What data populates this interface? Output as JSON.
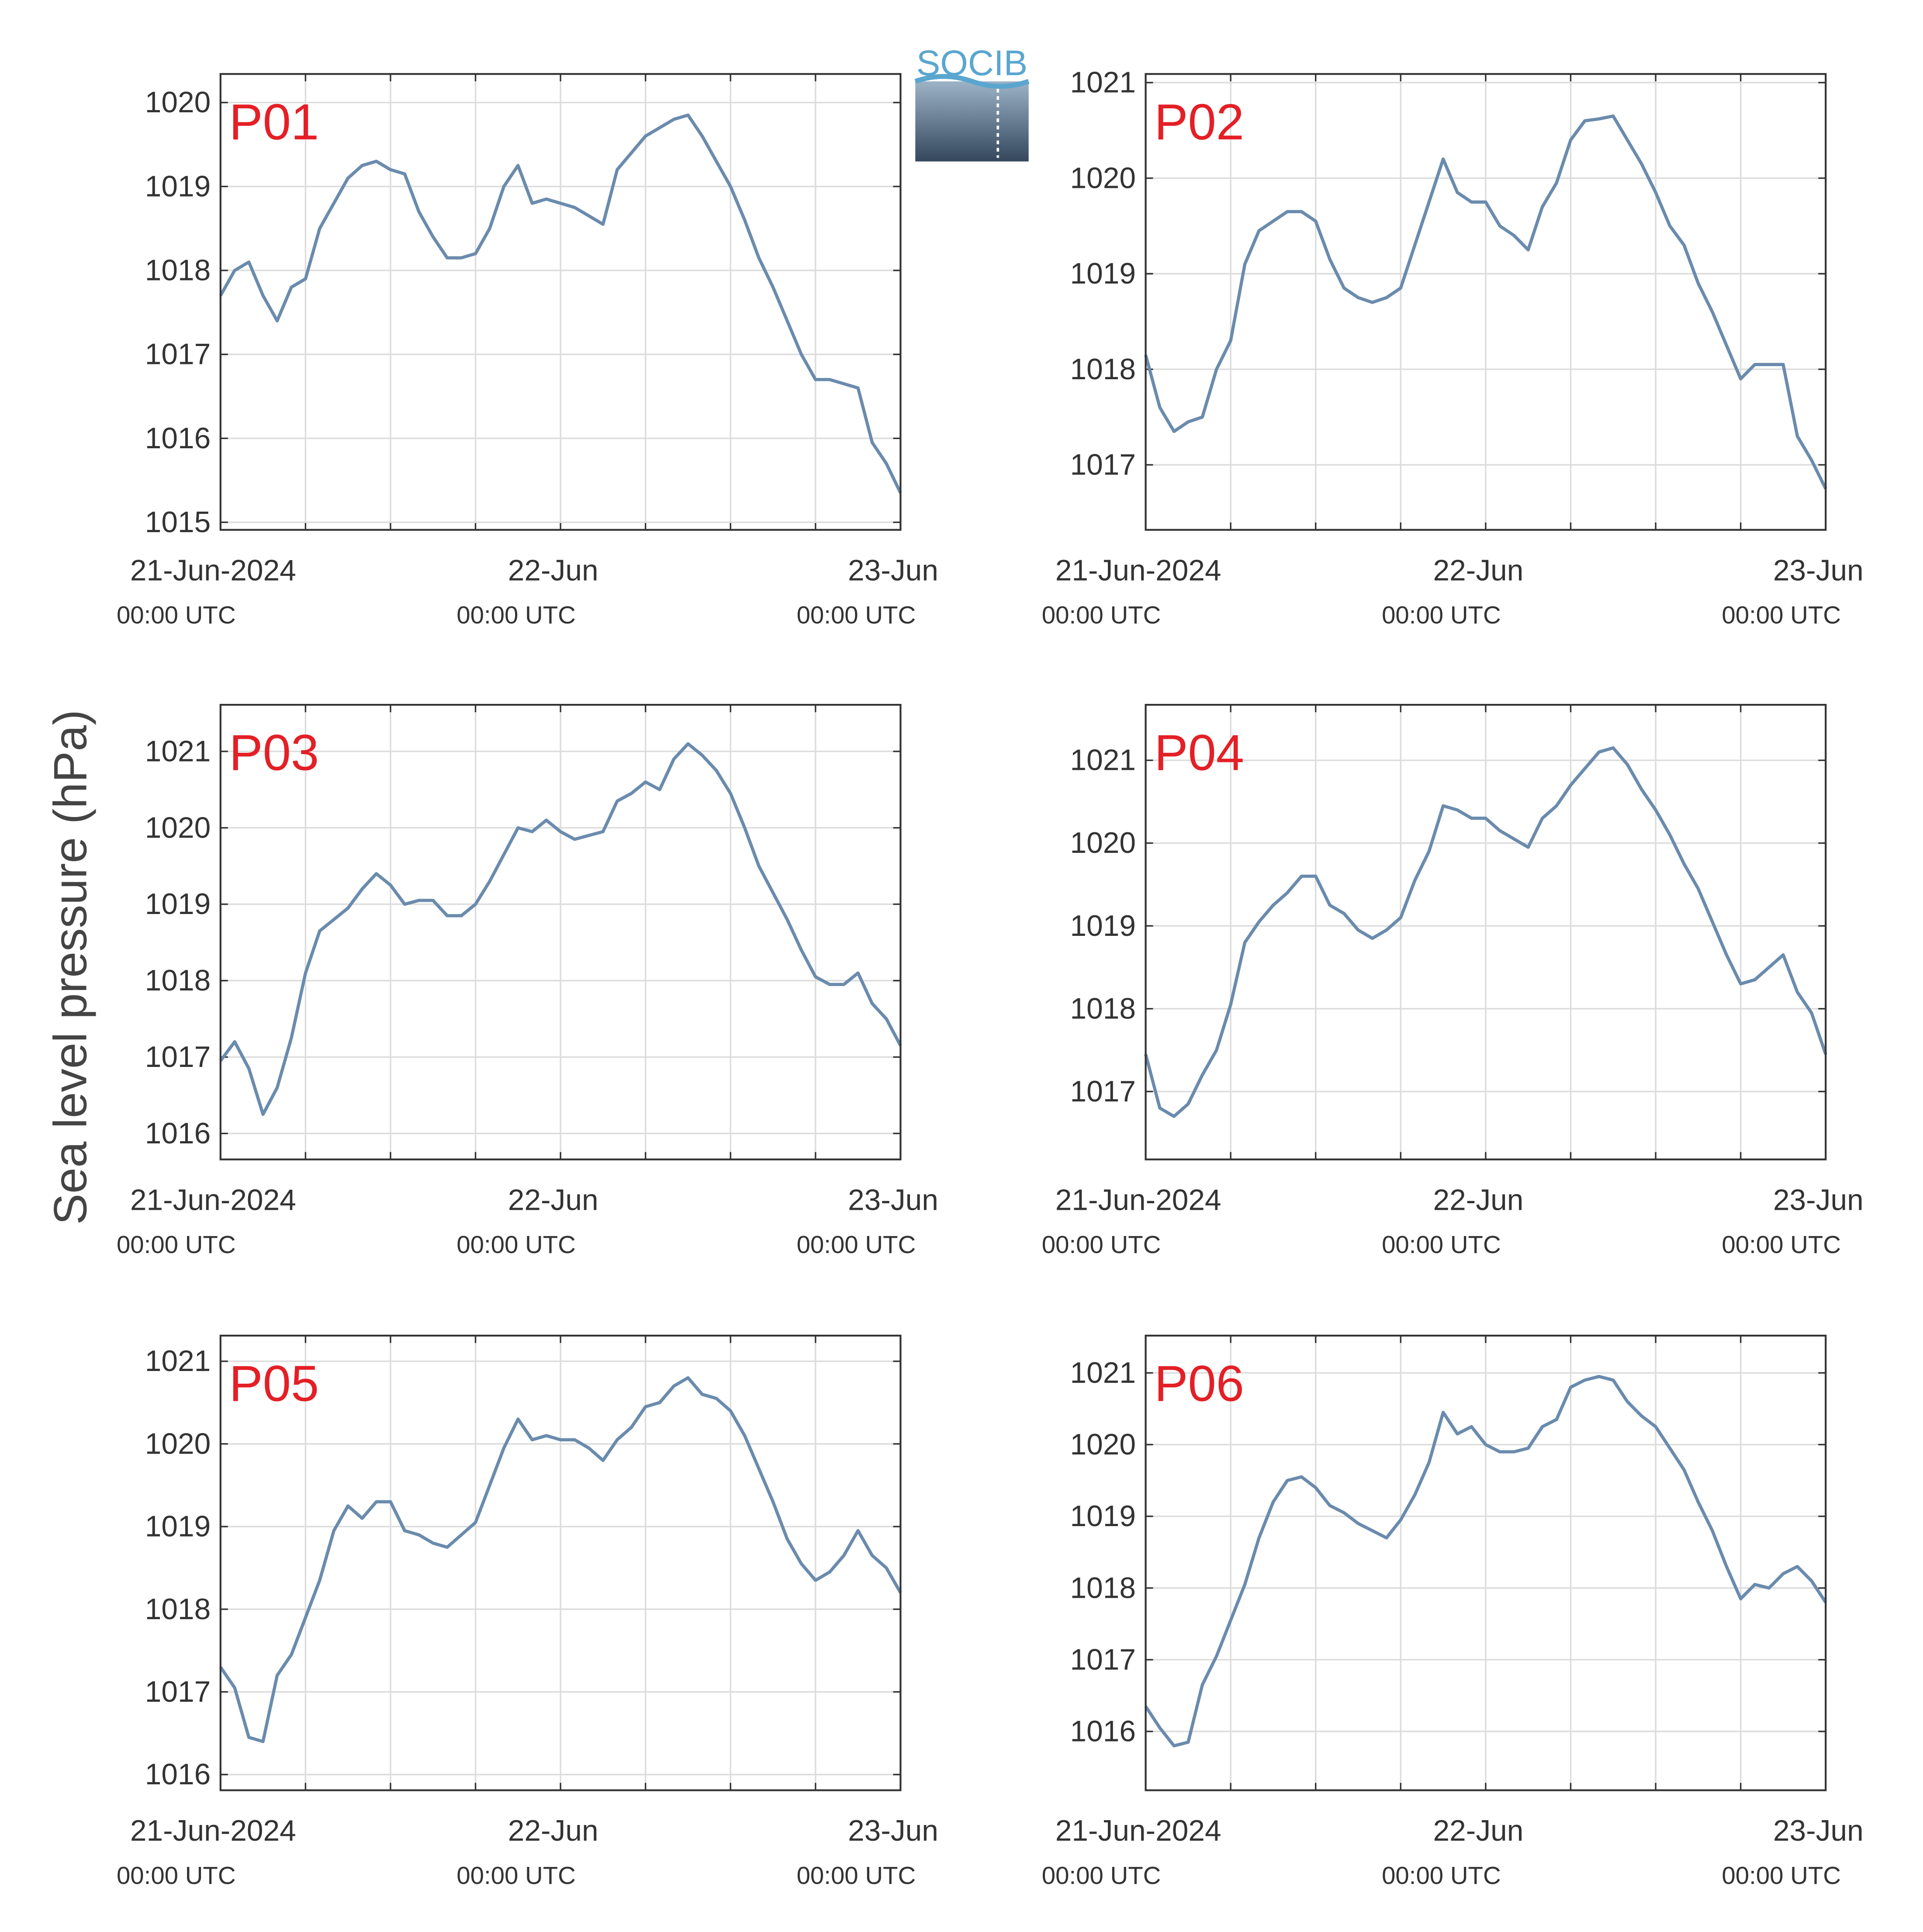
{
  "ylabel": "Sea level pressure (hPa)",
  "logo": "SOCIB",
  "chart_data": [
    {
      "type": "line",
      "title": "P01",
      "color": "#6a8bad",
      "grid": true,
      "xlim": [
        0,
        48
      ],
      "ylim": [
        1014.91,
        1020.34
      ],
      "yticks": [
        1015,
        1016,
        1017,
        1018,
        1019,
        1020
      ],
      "xticks": [
        {
          "value": 0,
          "label": "21-Jun-2024",
          "sublabel": "00:00 UTC"
        },
        {
          "value": 24,
          "label": "22-Jun",
          "sublabel": "00:00 UTC"
        },
        {
          "value": 48,
          "label": "23-Jun",
          "sublabel": "00:00 UTC"
        }
      ],
      "xminor": [
        6,
        12,
        18,
        30,
        36,
        42
      ],
      "x": [
        0,
        1,
        2,
        3,
        4,
        5,
        6,
        7,
        8,
        9,
        10,
        11,
        12,
        13,
        14,
        15,
        16,
        17,
        18,
        19,
        20,
        21,
        22,
        23,
        24,
        25,
        26,
        27,
        28,
        29,
        30,
        31,
        32,
        33,
        34,
        35,
        36,
        37,
        38,
        39,
        40,
        41,
        42,
        43,
        44,
        45,
        46,
        47,
        48
      ],
      "values": [
        1017.7,
        1018.0,
        1018.1,
        1017.7,
        1017.4,
        1017.8,
        1017.9,
        1018.5,
        1018.8,
        1019.1,
        1019.25,
        1019.3,
        1019.2,
        1019.15,
        1018.7,
        1018.4,
        1018.15,
        1018.15,
        1018.2,
        1018.5,
        1019.0,
        1019.25,
        1018.8,
        1018.85,
        1018.8,
        1018.75,
        1018.65,
        1018.55,
        1019.2,
        1019.4,
        1019.6,
        1019.7,
        1019.8,
        1019.85,
        1019.6,
        1019.3,
        1019.0,
        1018.6,
        1018.15,
        1017.8,
        1017.4,
        1017.0,
        1016.7,
        1016.7,
        1016.65,
        1016.6,
        1015.95,
        1015.7,
        1015.35
      ]
    },
    {
      "type": "line",
      "title": "P02",
      "color": "#6a8bad",
      "grid": true,
      "xlim": [
        0,
        48
      ],
      "ylim": [
        1016.32,
        1021.09
      ],
      "yticks": [
        1017,
        1018,
        1019,
        1020,
        1021
      ],
      "xticks": [
        {
          "value": 0,
          "label": "21-Jun-2024",
          "sublabel": "00:00 UTC"
        },
        {
          "value": 24,
          "label": "22-Jun",
          "sublabel": "00:00 UTC"
        },
        {
          "value": 48,
          "label": "23-Jun",
          "sublabel": "00:00 UTC"
        }
      ],
      "xminor": [
        6,
        12,
        18,
        30,
        36,
        42
      ],
      "x": [
        0,
        1,
        2,
        3,
        4,
        5,
        6,
        7,
        8,
        9,
        10,
        11,
        12,
        13,
        14,
        15,
        16,
        17,
        18,
        19,
        20,
        21,
        22,
        23,
        24,
        25,
        26,
        27,
        28,
        29,
        30,
        31,
        32,
        33,
        34,
        35,
        36,
        37,
        38,
        39,
        40,
        41,
        42,
        43,
        44,
        45,
        46,
        47,
        48
      ],
      "values": [
        1018.15,
        1017.6,
        1017.35,
        1017.45,
        1017.5,
        1018.0,
        1018.3,
        1019.1,
        1019.45,
        1019.55,
        1019.65,
        1019.65,
        1019.55,
        1019.15,
        1018.85,
        1018.75,
        1018.7,
        1018.75,
        1018.85,
        1019.3,
        1019.75,
        1020.2,
        1019.85,
        1019.75,
        1019.75,
        1019.5,
        1019.4,
        1019.25,
        1019.7,
        1019.95,
        1020.4,
        1020.6,
        1020.62,
        1020.65,
        1020.4,
        1020.15,
        1019.85,
        1019.5,
        1019.3,
        1018.9,
        1018.6,
        1018.25,
        1017.9,
        1018.05,
        1018.05,
        1018.05,
        1017.3,
        1017.05,
        1016.75
      ]
    },
    {
      "type": "line",
      "title": "P03",
      "color": "#6a8bad",
      "grid": true,
      "xlim": [
        0,
        48
      ],
      "ylim": [
        1015.66,
        1021.61
      ],
      "yticks": [
        1016,
        1017,
        1018,
        1019,
        1020,
        1021
      ],
      "xticks": [
        {
          "value": 0,
          "label": "21-Jun-2024",
          "sublabel": "00:00 UTC"
        },
        {
          "value": 24,
          "label": "22-Jun",
          "sublabel": "00:00 UTC"
        },
        {
          "value": 48,
          "label": "23-Jun",
          "sublabel": "00:00 UTC"
        }
      ],
      "xminor": [
        6,
        12,
        18,
        30,
        36,
        42
      ],
      "x": [
        0,
        1,
        2,
        3,
        4,
        5,
        6,
        7,
        8,
        9,
        10,
        11,
        12,
        13,
        14,
        15,
        16,
        17,
        18,
        19,
        20,
        21,
        22,
        23,
        24,
        25,
        26,
        27,
        28,
        29,
        30,
        31,
        32,
        33,
        34,
        35,
        36,
        37,
        38,
        39,
        40,
        41,
        42,
        43,
        44,
        45,
        46,
        47,
        48
      ],
      "values": [
        1016.95,
        1017.2,
        1016.85,
        1016.25,
        1016.6,
        1017.25,
        1018.1,
        1018.65,
        1018.8,
        1018.95,
        1019.2,
        1019.4,
        1019.25,
        1019.0,
        1019.05,
        1019.05,
        1018.85,
        1018.85,
        1019.0,
        1019.3,
        1019.65,
        1020.0,
        1019.95,
        1020.1,
        1019.95,
        1019.85,
        1019.9,
        1019.95,
        1020.35,
        1020.45,
        1020.6,
        1020.5,
        1020.9,
        1021.1,
        1020.95,
        1020.75,
        1020.45,
        1020.0,
        1019.5,
        1019.15,
        1018.8,
        1018.4,
        1018.05,
        1017.95,
        1017.95,
        1018.1,
        1017.7,
        1017.5,
        1017.15
      ]
    },
    {
      "type": "line",
      "title": "P04",
      "color": "#6a8bad",
      "grid": true,
      "xlim": [
        0,
        48
      ],
      "ylim": [
        1016.18,
        1021.67
      ],
      "yticks": [
        1017,
        1018,
        1019,
        1020,
        1021
      ],
      "xticks": [
        {
          "value": 0,
          "label": "21-Jun-2024",
          "sublabel": "00:00 UTC"
        },
        {
          "value": 24,
          "label": "22-Jun",
          "sublabel": "00:00 UTC"
        },
        {
          "value": 48,
          "label": "23-Jun",
          "sublabel": "00:00 UTC"
        }
      ],
      "xminor": [
        6,
        12,
        18,
        30,
        36,
        42
      ],
      "x": [
        0,
        1,
        2,
        3,
        4,
        5,
        6,
        7,
        8,
        9,
        10,
        11,
        12,
        13,
        14,
        15,
        16,
        17,
        18,
        19,
        20,
        21,
        22,
        23,
        24,
        25,
        26,
        27,
        28,
        29,
        30,
        31,
        32,
        33,
        34,
        35,
        36,
        37,
        38,
        39,
        40,
        41,
        42,
        43,
        44,
        45,
        46,
        47,
        48
      ],
      "values": [
        1017.45,
        1016.8,
        1016.7,
        1016.85,
        1017.2,
        1017.5,
        1018.05,
        1018.8,
        1019.05,
        1019.25,
        1019.4,
        1019.6,
        1019.6,
        1019.25,
        1019.15,
        1018.95,
        1018.85,
        1018.95,
        1019.1,
        1019.55,
        1019.9,
        1020.45,
        1020.4,
        1020.3,
        1020.3,
        1020.15,
        1020.05,
        1019.95,
        1020.3,
        1020.45,
        1020.7,
        1020.9,
        1021.1,
        1021.15,
        1020.95,
        1020.65,
        1020.4,
        1020.1,
        1019.75,
        1019.45,
        1019.05,
        1018.65,
        1018.3,
        1018.35,
        1018.5,
        1018.65,
        1018.2,
        1017.95,
        1017.45
      ]
    },
    {
      "type": "line",
      "title": "P05",
      "color": "#6a8bad",
      "grid": true,
      "xlim": [
        0,
        48
      ],
      "ylim": [
        1015.81,
        1021.31
      ],
      "yticks": [
        1016,
        1017,
        1018,
        1019,
        1020,
        1021
      ],
      "xticks": [
        {
          "value": 0,
          "label": "21-Jun-2024",
          "sublabel": "00:00 UTC"
        },
        {
          "value": 24,
          "label": "22-Jun",
          "sublabel": "00:00 UTC"
        },
        {
          "value": 48,
          "label": "23-Jun",
          "sublabel": "00:00 UTC"
        }
      ],
      "xminor": [
        6,
        12,
        18,
        30,
        36,
        42
      ],
      "x": [
        0,
        1,
        2,
        3,
        4,
        5,
        6,
        7,
        8,
        9,
        10,
        11,
        12,
        13,
        14,
        15,
        16,
        17,
        18,
        19,
        20,
        21,
        22,
        23,
        24,
        25,
        26,
        27,
        28,
        29,
        30,
        31,
        32,
        33,
        34,
        35,
        36,
        37,
        38,
        39,
        40,
        41,
        42,
        43,
        44,
        45,
        46,
        47,
        48
      ],
      "values": [
        1017.3,
        1017.05,
        1016.45,
        1016.4,
        1017.2,
        1017.45,
        1017.9,
        1018.35,
        1018.95,
        1019.25,
        1019.1,
        1019.3,
        1019.3,
        1018.95,
        1018.9,
        1018.8,
        1018.75,
        1018.9,
        1019.05,
        1019.5,
        1019.95,
        1020.3,
        1020.05,
        1020.1,
        1020.05,
        1020.05,
        1019.95,
        1019.8,
        1020.05,
        1020.2,
        1020.45,
        1020.5,
        1020.7,
        1020.8,
        1020.6,
        1020.55,
        1020.4,
        1020.1,
        1019.7,
        1019.3,
        1018.85,
        1018.55,
        1018.35,
        1018.45,
        1018.65,
        1018.95,
        1018.65,
        1018.5,
        1018.2
      ]
    },
    {
      "type": "line",
      "title": "P06",
      "color": "#6a8bad",
      "grid": true,
      "xlim": [
        0,
        48
      ],
      "ylim": [
        1015.18,
        1021.52
      ],
      "yticks": [
        1016,
        1017,
        1018,
        1019,
        1020,
        1021
      ],
      "xticks": [
        {
          "value": 0,
          "label": "21-Jun-2024",
          "sublabel": "00:00 UTC"
        },
        {
          "value": 24,
          "label": "22-Jun",
          "sublabel": "00:00 UTC"
        },
        {
          "value": 48,
          "label": "23-Jun",
          "sublabel": "00:00 UTC"
        }
      ],
      "xminor": [
        6,
        12,
        18,
        30,
        36,
        42
      ],
      "x": [
        0,
        1,
        2,
        3,
        4,
        5,
        6,
        7,
        8,
        9,
        10,
        11,
        12,
        13,
        14,
        15,
        16,
        17,
        18,
        19,
        20,
        21,
        22,
        23,
        24,
        25,
        26,
        27,
        28,
        29,
        30,
        31,
        32,
        33,
        34,
        35,
        36,
        37,
        38,
        39,
        40,
        41,
        42,
        43,
        44,
        45,
        46,
        47,
        48
      ],
      "values": [
        1016.35,
        1016.05,
        1015.8,
        1015.85,
        1016.65,
        1017.05,
        1017.55,
        1018.05,
        1018.7,
        1019.2,
        1019.5,
        1019.55,
        1019.4,
        1019.15,
        1019.05,
        1018.9,
        1018.8,
        1018.7,
        1018.95,
        1019.3,
        1019.75,
        1020.45,
        1020.15,
        1020.25,
        1020.0,
        1019.9,
        1019.9,
        1019.95,
        1020.25,
        1020.35,
        1020.8,
        1020.9,
        1020.95,
        1020.9,
        1020.6,
        1020.4,
        1020.25,
        1019.95,
        1019.65,
        1019.2,
        1018.8,
        1018.3,
        1017.85,
        1018.05,
        1018.0,
        1018.2,
        1018.3,
        1018.1,
        1017.8
      ]
    }
  ]
}
